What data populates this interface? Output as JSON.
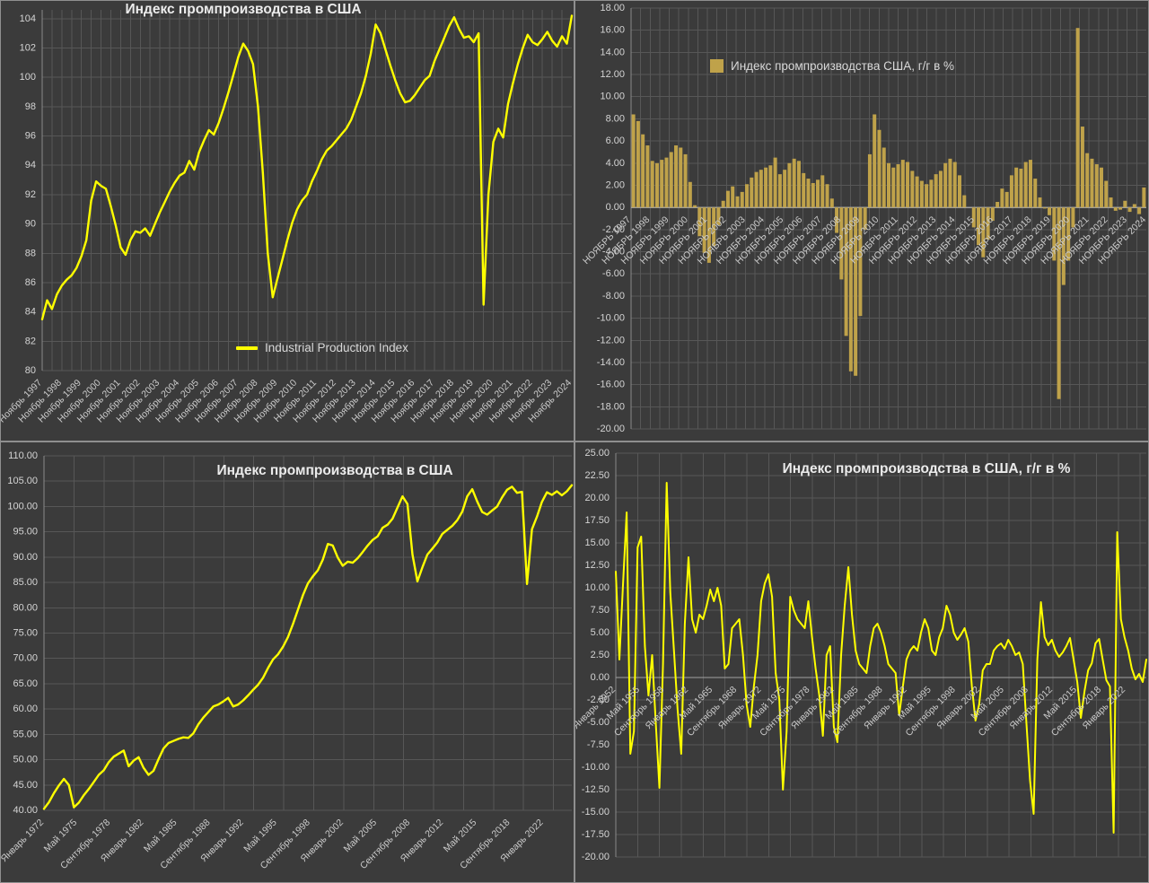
{
  "page": {
    "background": "#3b3b3b"
  },
  "colors": {
    "line_yellow": "#ffff00",
    "bar_gold": "#bfa24a",
    "grid": "#575757",
    "axis": "#8a8a8a",
    "tick_text": "#d4d4d4",
    "title_text": "#ececec"
  },
  "chart_data": [
    {
      "type": "line",
      "title": "Индекс промпроизводства в США",
      "legend": {
        "label": "Industrial Production Index",
        "marker": "line",
        "position": "inside-bottom-center"
      },
      "color": "#ffff00",
      "ylim": [
        80,
        104.6
      ],
      "ystep": 2,
      "grid": "on",
      "y_tick_labels": [
        "104",
        "102",
        "100",
        "98",
        "96",
        "94",
        "92",
        "90",
        "88",
        "86",
        "84",
        "82",
        "80"
      ],
      "x_labels": [
        "Ноябрь 1997",
        "Ноябрь 1998",
        "Ноябрь 1999",
        "Ноябрь 2000",
        "Ноябрь 2001",
        "Ноябрь 2002",
        "Ноябрь 2003",
        "Ноябрь 2004",
        "Ноябрь 2005",
        "Ноябрь 2006",
        "Ноябрь 2007",
        "Ноябрь 2008",
        "Ноябрь 2009",
        "Ноябрь 2010",
        "Ноябрь 2011",
        "Ноябрь 2012",
        "Ноябрь 2013",
        "Ноябрь 2014",
        "Ноябрь 2015",
        "Ноябрь 2016",
        "Ноябрь 2017",
        "Ноябрь 2018",
        "Ноябрь 2019",
        "Ноябрь 2020",
        "Ноябрь 2021",
        "Ноябрь 2022",
        "Ноябрь 2023",
        "Ноябрь 2024"
      ],
      "x_label_placement": "bottom",
      "x_label_span": 1,
      "v_grid_step": 0.018518,
      "values": [
        83.5,
        84.8,
        84.2,
        85.2,
        85.8,
        86.2,
        86.5,
        87.0,
        87.8,
        88.9,
        91.6,
        92.9,
        92.6,
        92.4,
        91.2,
        89.9,
        88.4,
        87.9,
        88.9,
        89.5,
        89.4,
        89.7,
        89.2,
        90.0,
        90.8,
        91.5,
        92.2,
        92.8,
        93.3,
        93.5,
        94.3,
        93.7,
        94.9,
        95.7,
        96.4,
        96.1,
        96.9,
        97.9,
        99.0,
        100.2,
        101.4,
        102.3,
        101.8,
        100.9,
        98.0,
        93.5,
        88.0,
        85.0,
        86.3,
        87.6,
        88.9,
        90.1,
        91.0,
        91.6,
        92.0,
        92.9,
        93.6,
        94.4,
        95.0,
        95.3,
        95.7,
        96.1,
        96.5,
        97.1,
        98.0,
        98.9,
        100.1,
        101.6,
        103.6,
        103.0,
        101.9,
        100.8,
        99.8,
        98.9,
        98.3,
        98.4,
        98.8,
        99.3,
        99.8,
        100.1,
        101.1,
        101.9,
        102.7,
        103.5,
        104.1,
        103.3,
        102.7,
        102.8,
        102.4,
        103.0,
        84.5,
        92.0,
        95.6,
        96.5,
        95.9,
        98.2,
        99.6,
        100.9,
        102.0,
        102.9,
        102.4,
        102.2,
        102.6,
        103.1,
        102.5,
        102.1,
        102.8,
        102.3,
        104.2
      ]
    },
    {
      "type": "bar",
      "title": "",
      "legend": {
        "label": "Индекс промпроизводства США, г/г в %",
        "marker": "square",
        "position": "inside-top-left"
      },
      "color": "#bfa24a",
      "ylim": [
        -20,
        18
      ],
      "ystep": 2,
      "grid": "on",
      "y_tick_labels": [
        "18.00",
        "16.00",
        "14.00",
        "12.00",
        "10.00",
        "8.00",
        "6.00",
        "4.00",
        "2.00",
        "0.00",
        "-2.00",
        "-4.00",
        "-6.00",
        "-8.00",
        "-10.00",
        "-12.00",
        "-14.00",
        "-16.00",
        "-18.00",
        "-20.00"
      ],
      "x_labels": [
        "НОЯБРЬ 1997",
        "НОЯБРЬ 1998",
        "НОЯБРЬ 1999",
        "НОЯБРЬ 2000",
        "НОЯБРЬ 2001",
        "НОЯБРЬ 2002",
        "НОЯБРЬ 2003",
        "НОЯБРЬ 2004",
        "НОЯБРЬ 2005",
        "НОЯБРЬ 2006",
        "НОЯБРЬ 2007",
        "НОЯБРЬ 2008",
        "НОЯБРЬ 2009",
        "НОЯБРЬ 2010",
        "НОЯБРЬ 2011",
        "НОЯБРЬ 2012",
        "НОЯБРЬ 2013",
        "НОЯБРЬ 2014",
        "НОЯБРЬ 2015",
        "НОЯБРЬ 2016",
        "НОЯБРЬ 2017",
        "НОЯБРЬ 2018",
        "НОЯБРЬ 2019",
        "НОЯБРЬ 2020",
        "НОЯБРЬ 2021",
        "НОЯБРЬ 2022",
        "НОЯБРЬ 2023",
        "НОЯБРЬ 2024"
      ],
      "x_label_placement": "zero",
      "x_label_span": 1,
      "v_grid_step": 0.018518,
      "values": [
        8.4,
        7.8,
        6.6,
        5.6,
        4.2,
        4.0,
        4.3,
        4.5,
        5.0,
        5.6,
        5.4,
        4.8,
        2.3,
        0.2,
        -2.6,
        -4.1,
        -5.0,
        -3.5,
        -1.6,
        0.6,
        1.5,
        1.9,
        1.0,
        1.4,
        2.1,
        2.7,
        3.2,
        3.4,
        3.6,
        3.8,
        4.5,
        3.0,
        3.4,
        4.0,
        4.4,
        4.2,
        3.1,
        2.6,
        2.2,
        2.5,
        2.9,
        2.1,
        0.8,
        -2.3,
        -6.5,
        -11.6,
        -14.8,
        -15.2,
        -9.8,
        -2.0,
        4.8,
        8.4,
        7.0,
        5.4,
        4.0,
        3.6,
        3.9,
        4.3,
        4.1,
        3.3,
        2.8,
        2.4,
        2.1,
        2.5,
        3.0,
        3.3,
        4.0,
        4.4,
        4.1,
        2.9,
        1.1,
        0.0,
        -1.8,
        -3.4,
        -4.5,
        -2.9,
        -1.2,
        0.5,
        1.7,
        1.4,
        2.9,
        3.6,
        3.5,
        4.1,
        4.3,
        2.6,
        0.9,
        -0.1,
        -0.7,
        -4.8,
        -17.3,
        -7.0,
        -4.8,
        -1.8,
        16.2,
        7.3,
        4.9,
        4.4,
        3.9,
        3.6,
        2.4,
        0.9,
        -0.3,
        -0.2,
        0.6,
        -0.4,
        0.3,
        -0.6,
        1.8
      ]
    },
    {
      "type": "line",
      "title": "Индекс промпроизводства в США",
      "color": "#ffff00",
      "ylim": [
        40,
        110
      ],
      "ystep": 5,
      "grid": "on",
      "y_tick_labels": [
        "110.00",
        "105.00",
        "100.00",
        "95.00",
        "90.00",
        "85.00",
        "80.00",
        "75.00",
        "70.00",
        "65.00",
        "60.00",
        "55.00",
        "50.00",
        "45.00",
        "40.00"
      ],
      "x_labels": [
        "Январь 1972",
        "Май 1975",
        "Сентябрь 1978",
        "Январь 1982",
        "Май 1985",
        "Сентябрь 1988",
        "Январь 1992",
        "Май 1995",
        "Сентябрь 1998",
        "Январь 2002",
        "Май 2005",
        "Сентябрь 2008",
        "Январь 2012",
        "Май 2015",
        "Сентябрь 2018",
        "Январь 2022"
      ],
      "x_label_placement": "bottom",
      "x_label_span": 0.9464,
      "v_grid_step": 0.05678,
      "values": [
        40.3,
        41.6,
        43.4,
        44.9,
        46.2,
        45.0,
        40.6,
        41.5,
        43.0,
        44.2,
        45.6,
        47.0,
        47.9,
        49.5,
        50.6,
        51.2,
        51.8,
        48.7,
        49.8,
        50.5,
        48.4,
        47.0,
        47.8,
        50.1,
        52.2,
        53.3,
        53.7,
        54.1,
        54.4,
        54.3,
        55.2,
        57.0,
        58.3,
        59.4,
        60.5,
        60.9,
        61.5,
        62.2,
        60.5,
        60.9,
        61.7,
        62.7,
        63.8,
        64.8,
        66.2,
        68.1,
        69.8,
        70.8,
        72.3,
        74.2,
        76.8,
        79.6,
        82.5,
        84.8,
        86.2,
        87.4,
        89.5,
        92.6,
        92.3,
        89.9,
        88.3,
        89.1,
        88.9,
        89.8,
        91.0,
        92.3,
        93.4,
        94.1,
        95.8,
        96.4,
        97.6,
        99.8,
        102.0,
        100.5,
        90.5,
        85.2,
        88.0,
        90.5,
        91.7,
        92.9,
        94.6,
        95.4,
        96.2,
        97.3,
        99.0,
        102.0,
        103.4,
        101.0,
        98.9,
        98.4,
        99.2,
        100.0,
        101.8,
        103.3,
        103.9,
        102.7,
        102.9,
        84.7,
        95.5,
        98.0,
        100.9,
        102.8,
        102.3,
        103.0,
        102.2,
        103.0,
        104.2
      ]
    },
    {
      "type": "line",
      "title": "Индекс промпроизводства в США, г/г в %",
      "color": "#ffff00",
      "ylim": [
        -20,
        25
      ],
      "ystep": 2.5,
      "grid": "on",
      "y_tick_labels": [
        "25.00",
        "22.50",
        "20.00",
        "17.50",
        "15.00",
        "12.50",
        "10.00",
        "7.50",
        "5.00",
        "2.50",
        "0.00",
        "-2.50",
        "-5.00",
        "-7.50",
        "-10.00",
        "-12.50",
        "-15.00",
        "-17.50",
        "-20.00"
      ],
      "x_labels": [
        "Январь 1952",
        "Май 1955",
        "Сентябрь 1958",
        "Январь 1962",
        "Май 1965",
        "Сентябрь 1968",
        "Январь 1972",
        "Май 1975",
        "Сентябрь 1978",
        "Январь 1982",
        "Май 1985",
        "Сентябрь 1988",
        "Январь 1992",
        "Май 1995",
        "Сентябрь 1998",
        "Январь 2002",
        "Май 2005",
        "Сентябрь 2008",
        "Январь 2012",
        "Май 2015",
        "Сентябрь 2018",
        "Январь 2022"
      ],
      "x_label_placement": "zero",
      "x_label_span": 0.9611,
      "v_grid_step": 0.04119,
      "values": [
        11.8,
        2.0,
        10.5,
        18.4,
        -8.5,
        -6.0,
        14.5,
        15.7,
        3.5,
        -2.0,
        2.5,
        -5.0,
        -12.3,
        1.5,
        21.7,
        9.5,
        3.0,
        -3.5,
        -8.5,
        6.0,
        13.4,
        6.5,
        5.0,
        7.0,
        6.5,
        8.0,
        9.8,
        8.5,
        10.0,
        8.0,
        1.0,
        1.5,
        5.5,
        6.0,
        6.5,
        2.5,
        -3.0,
        -5.5,
        -1.0,
        2.5,
        8.5,
        10.5,
        11.5,
        9.0,
        0.5,
        -2.5,
        -12.5,
        -6.0,
        9.0,
        7.5,
        6.5,
        6.0,
        5.5,
        8.5,
        4.5,
        1.0,
        -2.0,
        -6.5,
        2.5,
        3.5,
        -5.5,
        -7.2,
        2.5,
        8.0,
        12.3,
        7.0,
        3.0,
        1.5,
        1.0,
        0.5,
        3.5,
        5.5,
        6.0,
        5.0,
        3.5,
        1.5,
        1.0,
        0.5,
        -4.2,
        -1.0,
        2.0,
        3.0,
        3.5,
        3.0,
        5.0,
        6.5,
        5.5,
        3.0,
        2.5,
        4.5,
        5.5,
        8.0,
        7.0,
        5.0,
        4.2,
        4.8,
        5.5,
        4.0,
        -1.0,
        -4.8,
        -3.0,
        0.8,
        1.5,
        1.5,
        3.0,
        3.5,
        3.8,
        3.2,
        4.2,
        3.5,
        2.5,
        2.8,
        1.5,
        -5.0,
        -11.5,
        -15.2,
        2.0,
        8.4,
        4.5,
        3.6,
        4.2,
        3.0,
        2.3,
        2.8,
        3.5,
        4.4,
        2.0,
        -0.5,
        -4.5,
        -1.5,
        0.8,
        1.6,
        3.8,
        4.3,
        2.0,
        -0.3,
        -1.0,
        -17.3,
        16.2,
        6.5,
        4.5,
        3.0,
        1.0,
        -0.2,
        0.4,
        -0.5,
        2.0
      ]
    }
  ]
}
